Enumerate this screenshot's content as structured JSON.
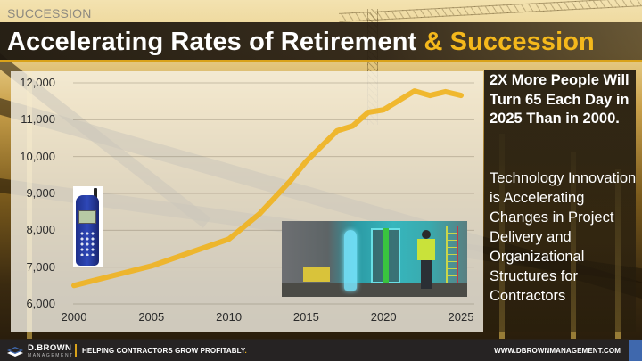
{
  "header": {
    "section_label": "SUCCESSION",
    "title_main": "Accelerating Rates of Retirement",
    "title_accent": "& Succession"
  },
  "side_panel": {
    "headline": "2X More People Will Turn 65 Each Day in 2025 Than in 2000.",
    "body": "Technology Innovation is Accelerating Changes in Project Delivery and Organizational Structures for Contractors"
  },
  "images": {
    "phone": "mobile-phone-illustration",
    "ar": "augmented-reality-construction-site-photo"
  },
  "footer": {
    "brand_name": "D.BROWN",
    "brand_sub": "MANAGEMENT",
    "tagline": "HELPING CONTRACTORS GROW PROFITABLY",
    "tagline_dot": ".",
    "website": "WWW.DBROWNMANAGEMENT.COM"
  },
  "colors": {
    "accent": "#f4b81c",
    "line": "#f0b21e",
    "title_bar": "#1c160e",
    "footer_bg": "#262323",
    "footer_blue": "#3f68ad"
  },
  "chart_data": {
    "type": "line",
    "title": "",
    "xlabel": "",
    "ylabel": "",
    "x": [
      2000,
      2005,
      2010,
      2012,
      2014,
      2015,
      2017,
      2018,
      2019,
      2020,
      2022,
      2023,
      2024,
      2025
    ],
    "series": [
      {
        "name": "People turning 65 per day",
        "values": [
          6500,
          7030,
          7760,
          8450,
          9350,
          9870,
          10700,
          10830,
          11200,
          11270,
          11780,
          11660,
          11760,
          11660
        ]
      }
    ],
    "x_ticks": [
      "2000",
      "2005",
      "2010",
      "2015",
      "2020",
      "2025"
    ],
    "y_ticks": [
      "6,000",
      "7,000",
      "8,000",
      "9,000",
      "10,000",
      "11,000",
      "12,000"
    ],
    "xlim": [
      2000,
      2025
    ],
    "ylim": [
      6000,
      12000
    ],
    "grid": "horizontal",
    "legend": "none"
  }
}
